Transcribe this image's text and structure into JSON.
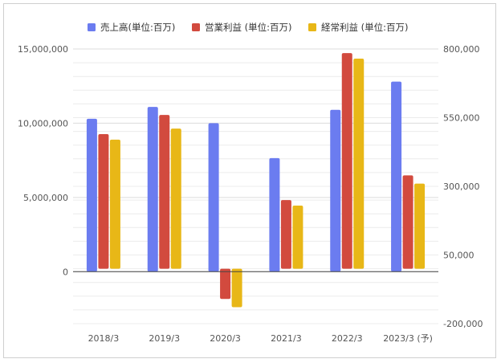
{
  "chart_data": {
    "type": "bar",
    "categories": [
      "2018/3",
      "2019/3",
      "2020/3",
      "2021/3",
      "2022/3",
      "2023/3 (予)"
    ],
    "series": [
      {
        "name": "売上高(単位:百万)",
        "axis": "left",
        "color": "#6b7cf0",
        "values": [
          10300000,
          11100000,
          10000000,
          7650000,
          10900000,
          12800000
        ]
      },
      {
        "name": "営業利益 (単位:百万)",
        "axis": "right",
        "color": "#d24a3e",
        "values": [
          490000,
          560000,
          -110000,
          250000,
          785000,
          340000
        ]
      },
      {
        "name": "経常利益 (単位:百万)",
        "axis": "right",
        "color": "#e8b717",
        "values": [
          470000,
          510000,
          -140000,
          230000,
          765000,
          310000
        ]
      }
    ],
    "left_axis": {
      "min": -3500000,
      "max": 15000000,
      "ticks": [
        0,
        5000000,
        10000000,
        15000000
      ],
      "tick_labels": [
        "0",
        "5,000,000",
        "10,000,000",
        "15,000,000"
      ]
    },
    "right_axis": {
      "min": -200000,
      "max": 800000,
      "ticks": [
        -200000,
        50000,
        300000,
        550000,
        800000
      ],
      "tick_labels": [
        "-200,000",
        "50,000",
        "300,000",
        "550,000",
        "800,000"
      ]
    },
    "legend_position": "top",
    "grid": true
  }
}
